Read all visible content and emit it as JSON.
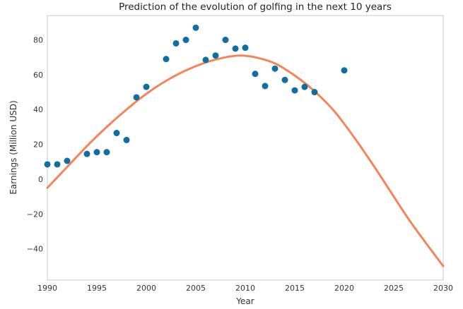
{
  "chart_data": {
    "type": "scatter",
    "title": "Prediction of the evolution of golfing in the next 10 years",
    "xlabel": "Year",
    "ylabel": "Earnings (Million USD)",
    "xlim": [
      1990,
      2030
    ],
    "ylim": [
      -58,
      94
    ],
    "grid": false,
    "xticks": [
      1990,
      1995,
      2000,
      2005,
      2010,
      2015,
      2020,
      2025,
      2030
    ],
    "yticks": [
      -40,
      -20,
      0,
      20,
      40,
      60,
      80
    ],
    "scatter_color": "#0e6fa0",
    "line_color": "#f4845a",
    "points": {
      "x": [
        1990,
        1991,
        1992,
        1994,
        1995,
        1996,
        1997,
        1998,
        1999,
        2000,
        2002,
        2003,
        2004,
        2005,
        2006,
        2007,
        2008,
        2009,
        2010,
        2011,
        2012,
        2013,
        2014,
        2015,
        2016,
        2017,
        2020
      ],
      "y": [
        8.5,
        8.5,
        10.5,
        14.5,
        15.5,
        15.5,
        26.5,
        22.5,
        47,
        53,
        69,
        78,
        80,
        87,
        68.5,
        71,
        80,
        75,
        75.5,
        60.5,
        53.5,
        63.5,
        57,
        51,
        53,
        50,
        62.5
      ]
    },
    "fit_curve": {
      "x": [
        1990,
        1992,
        1994,
        1996,
        1998,
        2000,
        2002,
        2004,
        2006,
        2008,
        2009.5,
        2011,
        2013,
        2015,
        2017,
        2019,
        2021,
        2023,
        2025,
        2027,
        2030
      ],
      "y": [
        -5,
        7,
        19,
        30,
        40,
        49,
        56.5,
        62.5,
        67,
        70,
        71,
        70,
        66.5,
        59.5,
        50.5,
        39,
        24,
        7.5,
        -10,
        -27,
        -50
      ]
    }
  }
}
